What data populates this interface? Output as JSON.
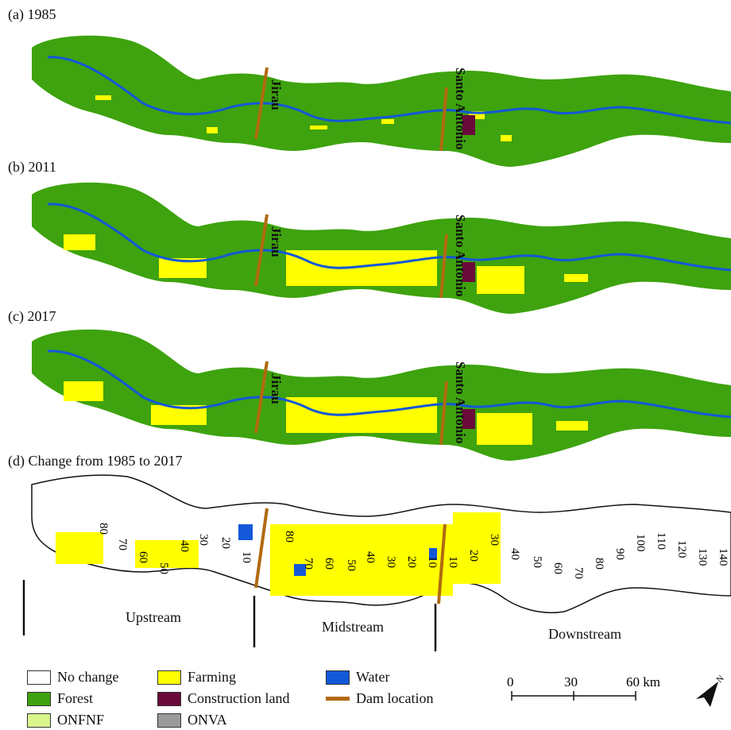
{
  "panels": [
    {
      "id": "a",
      "label": "(a) 1985"
    },
    {
      "id": "b",
      "label": "(b) 2011"
    },
    {
      "id": "c",
      "label": "(c) 2017"
    },
    {
      "id": "d",
      "label": "(d) Change from 1985 to 2017"
    }
  ],
  "dams": {
    "jirau": "Jirau",
    "santo_antonio": "Santo Antonio"
  },
  "segments": {
    "upstream": "Upstream",
    "midstream": "Midstream",
    "downstream": "Downstream"
  },
  "distance_labels": {
    "upstream": [
      "80",
      "70",
      "60",
      "50",
      "40",
      "30",
      "20",
      "10"
    ],
    "midstream": [
      "80",
      "70",
      "60",
      "50",
      "40",
      "30",
      "20",
      "10"
    ],
    "downstream": [
      "10",
      "20",
      "30",
      "40",
      "50",
      "60",
      "70",
      "80",
      "90",
      "100",
      "110",
      "120",
      "130",
      "140"
    ]
  },
  "legend": {
    "no_change": "No change",
    "forest": "Forest",
    "onfnf": "ONFNF",
    "farming": "Farming",
    "construction": "Construction land",
    "onva": "ONVA",
    "water": "Water",
    "dam": "Dam location"
  },
  "scale": {
    "ticks": [
      "0",
      "30",
      "60 km"
    ]
  },
  "north": {
    "label": "N"
  },
  "colors": {
    "forest": "#3ea30e",
    "farming": "#ffff00",
    "onfnf": "#d9f58c",
    "construction": "#6b0a3a",
    "onva": "#9a9a9a",
    "water": "#1358d8",
    "dam": "#b06a10"
  }
}
